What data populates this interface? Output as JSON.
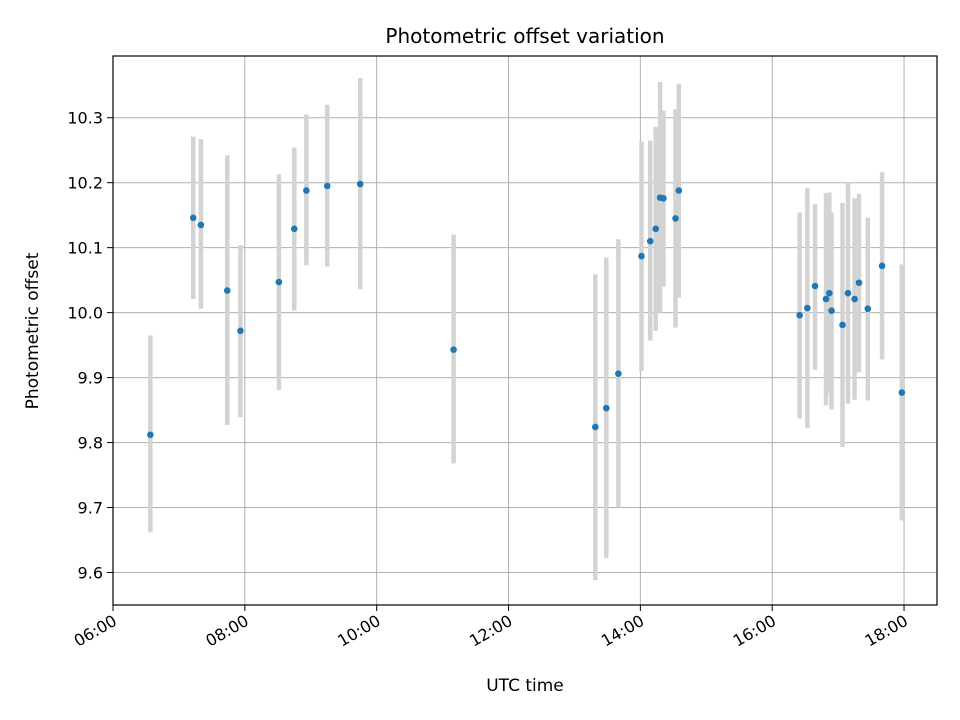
{
  "chart_data": {
    "type": "scatter",
    "title": "Photometric offset variation",
    "xlabel": "UTC time",
    "ylabel": "Photometric offset",
    "x_axis": {
      "min": "06:00",
      "max": "18:30",
      "ticks": [
        "06:00",
        "08:00",
        "10:00",
        "12:00",
        "14:00",
        "16:00",
        "18:00"
      ]
    },
    "y_axis": {
      "min": 9.55,
      "max": 10.395,
      "ticks": [
        "9.6",
        "9.7",
        "9.8",
        "9.9",
        "10.0",
        "10.1",
        "10.2",
        "10.3"
      ]
    },
    "grid": true,
    "colors": {
      "point": "#1f77b4",
      "errorbar": "#d3d3d3",
      "grid": "#b0b0b0"
    },
    "points": [
      {
        "time": "06:34",
        "value": 9.812,
        "low": 9.662,
        "high": 9.965
      },
      {
        "time": "07:13",
        "value": 10.146,
        "low": 10.021,
        "high": 10.271
      },
      {
        "time": "07:20",
        "value": 10.135,
        "low": 10.006,
        "high": 10.267
      },
      {
        "time": "07:44",
        "value": 10.034,
        "low": 9.827,
        "high": 10.242
      },
      {
        "time": "07:56",
        "value": 9.972,
        "low": 9.839,
        "high": 10.104
      },
      {
        "time": "08:31",
        "value": 10.047,
        "low": 9.881,
        "high": 10.213
      },
      {
        "time": "08:45",
        "value": 10.129,
        "low": 10.003,
        "high": 10.254
      },
      {
        "time": "08:56",
        "value": 10.188,
        "low": 10.073,
        "high": 10.305
      },
      {
        "time": "09:15",
        "value": 10.195,
        "low": 10.071,
        "high": 10.32
      },
      {
        "time": "09:45",
        "value": 10.198,
        "low": 10.036,
        "high": 10.361
      },
      {
        "time": "11:10",
        "value": 9.943,
        "low": 9.768,
        "high": 10.12
      },
      {
        "time": "13:19",
        "value": 9.824,
        "low": 9.588,
        "high": 10.059
      },
      {
        "time": "13:29",
        "value": 9.853,
        "low": 9.622,
        "high": 10.085
      },
      {
        "time": "13:40",
        "value": 9.906,
        "low": 9.7,
        "high": 10.113
      },
      {
        "time": "14:01",
        "value": 10.087,
        "low": 9.91,
        "high": 10.263
      },
      {
        "time": "14:09",
        "value": 10.11,
        "low": 9.957,
        "high": 10.265
      },
      {
        "time": "14:14",
        "value": 10.129,
        "low": 9.972,
        "high": 10.286
      },
      {
        "time": "14:18",
        "value": 10.177,
        "low": 10.0,
        "high": 10.355
      },
      {
        "time": "14:21",
        "value": 10.176,
        "low": 10.04,
        "high": 10.311
      },
      {
        "time": "14:32",
        "value": 10.145,
        "low": 9.977,
        "high": 10.313
      },
      {
        "time": "14:35",
        "value": 10.188,
        "low": 10.023,
        "high": 10.352
      },
      {
        "time": "16:25",
        "value": 9.996,
        "low": 9.837,
        "high": 10.154
      },
      {
        "time": "16:32",
        "value": 10.007,
        "low": 9.822,
        "high": 10.192
      },
      {
        "time": "16:39",
        "value": 10.041,
        "low": 9.912,
        "high": 10.167
      },
      {
        "time": "16:49",
        "value": 10.021,
        "low": 9.857,
        "high": 10.184
      },
      {
        "time": "16:52",
        "value": 10.03,
        "low": 9.876,
        "high": 10.185
      },
      {
        "time": "16:54",
        "value": 10.003,
        "low": 9.851,
        "high": 10.154
      },
      {
        "time": "17:04",
        "value": 9.981,
        "low": 9.793,
        "high": 10.169
      },
      {
        "time": "17:09",
        "value": 10.03,
        "low": 9.86,
        "high": 10.2
      },
      {
        "time": "17:15",
        "value": 10.021,
        "low": 9.866,
        "high": 10.176
      },
      {
        "time": "17:19",
        "value": 10.046,
        "low": 9.908,
        "high": 10.183
      },
      {
        "time": "17:27",
        "value": 10.006,
        "low": 9.865,
        "high": 10.146
      },
      {
        "time": "17:40",
        "value": 10.072,
        "low": 9.928,
        "high": 10.216
      },
      {
        "time": "17:58",
        "value": 9.877,
        "low": 9.68,
        "high": 10.074
      }
    ]
  }
}
